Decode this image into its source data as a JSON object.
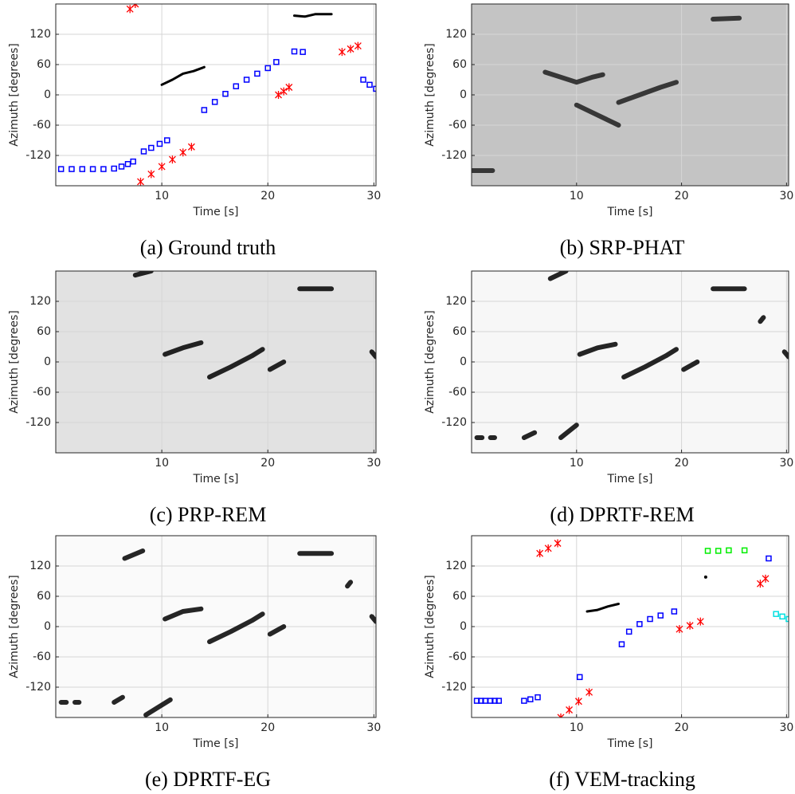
{
  "chart_data": [
    {
      "type": "scatter",
      "caption": "(a) Ground truth",
      "xlabel": "Time [s]",
      "ylabel": "Azimuth [degrees]",
      "xlim": [
        0,
        30.2
      ],
      "ylim": [
        -180,
        180
      ],
      "xticks": [
        10,
        20,
        30
      ],
      "yticks": [
        -120,
        -60,
        0,
        60,
        120
      ],
      "grid": true,
      "background": "#ffffff",
      "series": [
        {
          "marker": "square",
          "color": "#0000ff",
          "x": [
            0.5,
            1.5,
            2.5,
            3.5,
            4.5,
            5.5,
            6.2,
            6.8,
            7.3,
            8.3,
            9,
            9.8,
            10.5,
            14,
            15,
            16,
            17,
            18,
            19,
            20,
            20.8,
            22.5,
            23.3,
            29,
            29.6,
            30.2
          ],
          "values": [
            -147,
            -147,
            -147,
            -147,
            -147,
            -146,
            -142,
            -137,
            -132,
            -112,
            -105,
            -97,
            -90,
            -30,
            -14,
            2,
            17,
            30,
            42,
            53,
            65,
            86,
            85,
            30,
            20,
            12
          ]
        },
        {
          "marker": "x",
          "color": "#ff0000",
          "x": [
            7,
            7.5,
            8,
            9,
            10,
            11,
            12,
            12.8,
            21,
            21.5,
            22,
            27,
            27.8,
            28.5
          ],
          "values": [
            170,
            180,
            -172,
            -157,
            -142,
            -128,
            -114,
            -103,
            0,
            7,
            15,
            85,
            91,
            97
          ]
        },
        {
          "marker": "line",
          "color": "#000000",
          "x": [
            10,
            11,
            12,
            13,
            14,
            null,
            22.5,
            23.5,
            24.5,
            26
          ],
          "values": [
            20,
            30,
            42,
            47,
            55,
            null,
            157,
            155,
            160,
            160
          ]
        }
      ]
    },
    {
      "type": "heatmap",
      "caption": "(b) SRP-PHAT",
      "xlabel": "Time [s]",
      "ylabel": "Azimuth [degrees]",
      "xlim": [
        0,
        30.2
      ],
      "ylim": [
        -180,
        180
      ],
      "xticks": [
        10,
        20,
        30
      ],
      "yticks": [
        -120,
        -60,
        0,
        60,
        120
      ],
      "grid": true,
      "background": "#c4c4c4",
      "series": [
        {
          "marker": "line",
          "color": "#1e1e1e",
          "x": [
            7,
            8.5,
            10,
            11.5,
            12.5,
            null,
            14,
            16,
            18,
            19.5,
            null,
            23,
            25.5,
            null,
            0,
            2,
            null,
            10,
            12,
            14
          ],
          "values": [
            45,
            35,
            25,
            35,
            40,
            null,
            -15,
            0,
            15,
            25,
            null,
            150,
            152,
            null,
            -150,
            -150,
            null,
            -20,
            -40,
            -60
          ]
        }
      ]
    },
    {
      "type": "heatmap",
      "caption": "(c) PRP-REM",
      "xlabel": "Time [s]",
      "ylabel": "Azimuth [degrees]",
      "xlim": [
        0,
        30.2
      ],
      "ylim": [
        -180,
        180
      ],
      "xticks": [
        10,
        20,
        30
      ],
      "yticks": [
        -120,
        -60,
        0,
        60,
        120
      ],
      "grid": true,
      "background": "#e2e2e2",
      "series": [
        {
          "marker": "line",
          "color": "#000000",
          "x": [
            7.5,
            9,
            null,
            10.3,
            12,
            13.7,
            null,
            14.5,
            16.5,
            18.5,
            19.5,
            null,
            20.2,
            21.5,
            null,
            23,
            26,
            null,
            29.8,
            30.2
          ],
          "values": [
            172,
            180,
            null,
            15,
            28,
            38,
            null,
            -30,
            -10,
            12,
            25,
            null,
            -15,
            0,
            null,
            145,
            145,
            null,
            20,
            10
          ]
        }
      ]
    },
    {
      "type": "heatmap",
      "caption": "(d) DPRTF-REM",
      "xlabel": "Time [s]",
      "ylabel": "Azimuth [degrees]",
      "xlim": [
        0,
        30.2
      ],
      "ylim": [
        -180,
        180
      ],
      "xticks": [
        10,
        20,
        30
      ],
      "yticks": [
        -120,
        -60,
        0,
        60,
        120
      ],
      "grid": true,
      "background": "#f7f7f7",
      "series": [
        {
          "marker": "line",
          "color": "#000000",
          "x": [
            7.5,
            9,
            null,
            10.3,
            12,
            13.7,
            null,
            14.5,
            16.5,
            18.5,
            19.5,
            null,
            20.2,
            21.5,
            null,
            23,
            26,
            null,
            29.8,
            30.2,
            null,
            0.5,
            1,
            null,
            1.8,
            2.2,
            null,
            5,
            6,
            null,
            8.5,
            10,
            null,
            27.5,
            27.8
          ],
          "values": [
            165,
            180,
            null,
            15,
            28,
            35,
            null,
            -30,
            -10,
            12,
            25,
            null,
            -15,
            0,
            null,
            145,
            145,
            null,
            20,
            10,
            null,
            -150,
            -150,
            null,
            -150,
            -150,
            null,
            -150,
            -140,
            null,
            -150,
            -125,
            null,
            80,
            88
          ]
        }
      ]
    },
    {
      "type": "heatmap",
      "caption": "(e) DPRTF-EG",
      "xlabel": "Time [s]",
      "ylabel": "Azimuth [degrees]",
      "xlim": [
        0,
        30.2
      ],
      "ylim": [
        -180,
        180
      ],
      "xticks": [
        10,
        20,
        30
      ],
      "yticks": [
        -120,
        -60,
        0,
        60,
        120
      ],
      "grid": true,
      "background": "#fafafa",
      "series": [
        {
          "marker": "line",
          "color": "#000000",
          "x": [
            6.5,
            8.2,
            null,
            10.3,
            12,
            13.7,
            null,
            14.5,
            16.5,
            18.5,
            19.5,
            null,
            20.2,
            21.5,
            null,
            23,
            26,
            null,
            29.8,
            30.2,
            null,
            0.5,
            1,
            null,
            1.8,
            2.2,
            null,
            5.5,
            6.3,
            null,
            8.5,
            10.8,
            null,
            27.5,
            27.8
          ],
          "values": [
            135,
            150,
            null,
            15,
            30,
            35,
            null,
            -30,
            -10,
            12,
            25,
            null,
            -15,
            0,
            null,
            145,
            145,
            null,
            20,
            10,
            null,
            -150,
            -150,
            null,
            -150,
            -150,
            null,
            -150,
            -140,
            null,
            -175,
            -145,
            null,
            80,
            88
          ]
        }
      ]
    },
    {
      "type": "scatter",
      "caption": "(f) VEM-tracking",
      "xlabel": "Time [s]",
      "ylabel": "Azimuth [degrees]",
      "xlim": [
        0,
        30.2
      ],
      "ylim": [
        -180,
        180
      ],
      "xticks": [
        10,
        20,
        30
      ],
      "yticks": [
        -120,
        -60,
        0,
        60,
        120
      ],
      "grid": true,
      "background": "#ffffff",
      "series": [
        {
          "marker": "x",
          "color": "#ff0000",
          "x": [
            6.5,
            7.3,
            8.2,
            8.5,
            9.3,
            10.2,
            11.2,
            19.8,
            20.8,
            21.8,
            27.5,
            28
          ],
          "values": [
            145,
            155,
            165,
            -180,
            -165,
            -148,
            -130,
            -5,
            2,
            10,
            85,
            95
          ]
        },
        {
          "marker": "square",
          "color": "#0000ff",
          "x": [
            0.5,
            0.9,
            1.3,
            1.8,
            2.2,
            2.6,
            5,
            5.6,
            6.3,
            10.3,
            14.3,
            15,
            16,
            17,
            18,
            19.3,
            28.3
          ],
          "values": [
            -147,
            -147,
            -147,
            -147,
            -147,
            -147,
            -147,
            -144,
            -140,
            -100,
            -35,
            -10,
            5,
            15,
            22,
            30,
            135
          ]
        },
        {
          "marker": "line",
          "color": "#000000",
          "x": [
            11,
            12,
            13,
            14
          ],
          "values": [
            30,
            33,
            40,
            45
          ]
        },
        {
          "marker": "dot",
          "color": "#000000",
          "x": [
            22.3
          ],
          "values": [
            98
          ]
        },
        {
          "marker": "square",
          "color": "#00ee00",
          "x": [
            22.5,
            23.5,
            24.5,
            26
          ],
          "values": [
            150,
            150,
            151,
            151
          ]
        },
        {
          "marker": "square",
          "color": "#00e0e0",
          "x": [
            29,
            29.6,
            30.2
          ],
          "values": [
            25,
            20,
            15
          ]
        }
      ]
    }
  ]
}
